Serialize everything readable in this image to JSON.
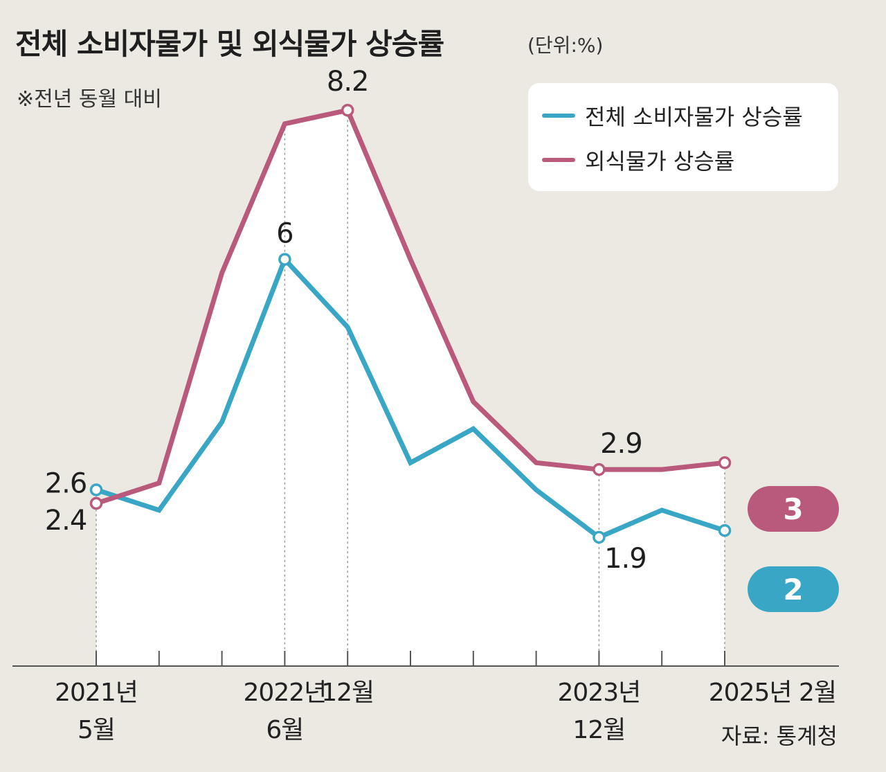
{
  "title": "전체 소비자물가 및 외식물가 상승률",
  "unit": "(단위:%)",
  "note": "※전년 동월 대비",
  "source": "자료: 통계청",
  "colors": {
    "cpi": "#3aa6c5",
    "dining": "#b9597c",
    "background": "#ece9e3",
    "plot_area": "#ffffff",
    "axis": "#555555"
  },
  "legend": {
    "cpi": "전체 소비자물가 상승률",
    "dining": "외식물가 상승률"
  },
  "chart_data": {
    "type": "line",
    "title": "전체 소비자물가 및 외식물가 상승률",
    "ylabel": "(단위:%)",
    "ylim": [
      0,
      8.5
    ],
    "x_index": [
      0,
      1,
      2,
      3,
      4,
      5,
      6,
      7,
      8,
      9,
      10
    ],
    "x_tick_labels": [
      {
        "index": 0,
        "line1": "2021년",
        "line2": "5월"
      },
      {
        "index": 3,
        "line1": "2022년",
        "line2": "6월"
      },
      {
        "index": 4,
        "line1": "12월",
        "line2": ""
      },
      {
        "index": 8,
        "line1": "2023년",
        "line2": "12월"
      },
      {
        "index": 10,
        "line1": "2025년 2월",
        "line2": ""
      }
    ],
    "series": [
      {
        "name": "전체 소비자물가 상승률",
        "key": "cpi",
        "values": [
          2.6,
          2.3,
          3.6,
          6.0,
          5.0,
          3.0,
          3.5,
          2.6,
          1.9,
          2.3,
          2.0
        ],
        "markers": [
          0,
          3,
          8,
          10
        ],
        "labels": [
          {
            "index": 0,
            "text": "2.6"
          },
          {
            "index": 3,
            "text": "6"
          },
          {
            "index": 8,
            "text": "1.9"
          }
        ],
        "end_label": "2"
      },
      {
        "name": "외식물가 상승률",
        "key": "dining",
        "values": [
          2.4,
          2.7,
          5.8,
          8.0,
          8.2,
          6.0,
          3.9,
          3.0,
          2.9,
          2.9,
          3.0
        ],
        "markers": [
          0,
          4,
          8,
          10
        ],
        "labels": [
          {
            "index": 0,
            "text": "2.4"
          },
          {
            "index": 4,
            "text": "8.2"
          },
          {
            "index": 8,
            "text": "2.9"
          }
        ],
        "end_label": "3"
      }
    ]
  }
}
